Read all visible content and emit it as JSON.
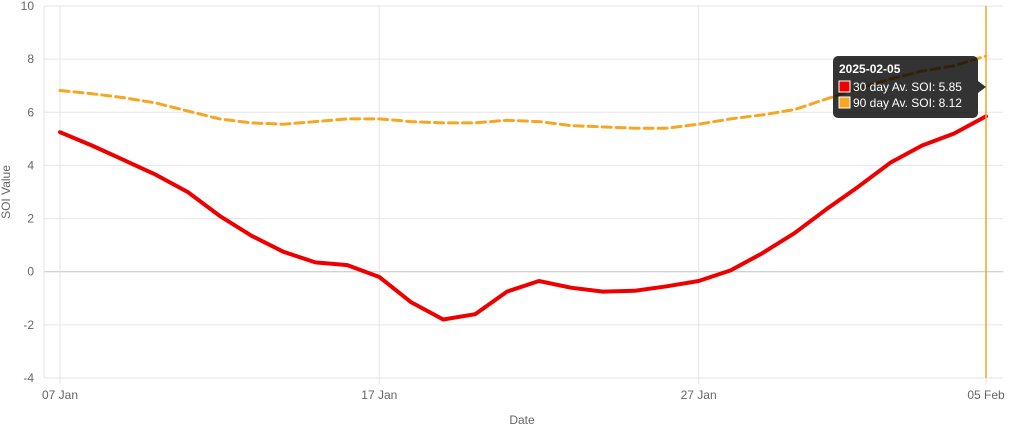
{
  "chart_data": {
    "type": "line",
    "xlabel": "Date",
    "ylabel": "SOI Value",
    "ylim": [
      -4,
      10
    ],
    "yticks": [
      -4,
      -2,
      0,
      2,
      4,
      6,
      8,
      10
    ],
    "x_ticks": [
      {
        "label": "07 Jan",
        "date": "2025-01-07"
      },
      {
        "label": "17 Jan",
        "date": "2025-01-17"
      },
      {
        "label": "27 Jan",
        "date": "2025-01-27"
      },
      {
        "label": "05 Feb",
        "date": "2025-02-05"
      }
    ],
    "x": [
      "2025-01-07",
      "2025-01-08",
      "2025-01-09",
      "2025-01-10",
      "2025-01-11",
      "2025-01-12",
      "2025-01-13",
      "2025-01-14",
      "2025-01-15",
      "2025-01-16",
      "2025-01-17",
      "2025-01-18",
      "2025-01-19",
      "2025-01-20",
      "2025-01-21",
      "2025-01-22",
      "2025-01-23",
      "2025-01-24",
      "2025-01-25",
      "2025-01-26",
      "2025-01-27",
      "2025-01-28",
      "2025-01-29",
      "2025-01-30",
      "2025-01-31",
      "2025-02-01",
      "2025-02-02",
      "2025-02-03",
      "2025-02-04",
      "2025-02-05"
    ],
    "series": [
      {
        "name": "30 day Av. SOI",
        "color": "#ee0000",
        "dash": false,
        "values": [
          5.25,
          4.75,
          4.2,
          3.65,
          3.0,
          2.1,
          1.35,
          0.75,
          0.35,
          0.25,
          -0.2,
          -1.15,
          -1.8,
          -1.6,
          -0.75,
          -0.35,
          -0.6,
          -0.75,
          -0.72,
          -0.55,
          -0.35,
          0.05,
          0.7,
          1.45,
          2.35,
          3.2,
          4.1,
          4.75,
          5.2,
          5.85
        ]
      },
      {
        "name": "90 day Av. SOI",
        "color": "#f5a623",
        "dash": true,
        "values": [
          6.82,
          6.7,
          6.55,
          6.35,
          6.05,
          5.75,
          5.6,
          5.55,
          5.65,
          5.75,
          5.75,
          5.65,
          5.6,
          5.6,
          5.7,
          5.65,
          5.5,
          5.45,
          5.4,
          5.4,
          5.55,
          5.75,
          5.9,
          6.1,
          6.5,
          6.9,
          7.25,
          7.55,
          7.75,
          8.12
        ]
      }
    ],
    "grid": true,
    "highlight_index": 29,
    "tooltip": {
      "title": "2025-02-05",
      "rows": [
        {
          "label": "30 day Av. SOI: 5.85",
          "color": "#ee0000"
        },
        {
          "label": "90 day Av. SOI: 8.12",
          "color": "#f5a623"
        }
      ]
    }
  }
}
